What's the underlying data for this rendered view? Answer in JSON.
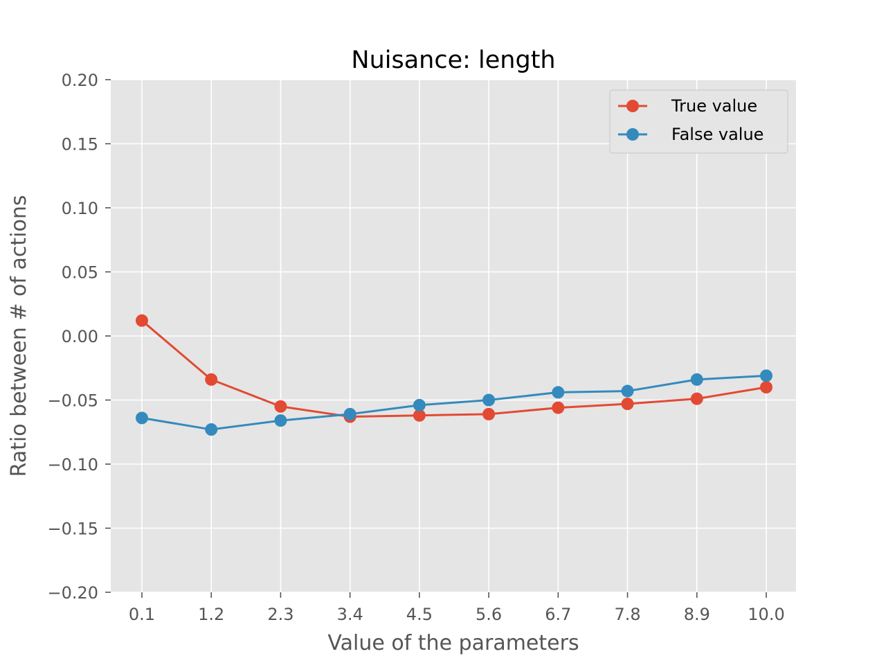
{
  "chart_data": {
    "type": "line",
    "title": "Nuisance: length",
    "xlabel": "Value of the parameters",
    "ylabel": "Ratio between # of actions",
    "x": [
      "0.1",
      "1.2",
      "2.3",
      "3.4",
      "4.5",
      "5.6",
      "6.7",
      "7.8",
      "8.9",
      "10.0"
    ],
    "ylim": [
      -0.2,
      0.2
    ],
    "yticks": [
      0.2,
      0.15,
      0.1,
      0.05,
      0.0,
      -0.05,
      -0.1,
      -0.15,
      -0.2
    ],
    "ytick_labels": [
      "0.20",
      "0.15",
      "0.10",
      "0.05",
      "0.00",
      "−0.05",
      "−0.10",
      "−0.15",
      "−0.20"
    ],
    "grid": true,
    "legend": "top-right",
    "background": "#e5e5e5",
    "series": [
      {
        "name": "True value",
        "color": "#e24a33",
        "values": [
          0.012,
          -0.034,
          -0.055,
          -0.063,
          -0.062,
          -0.061,
          -0.056,
          -0.053,
          -0.049,
          -0.04
        ]
      },
      {
        "name": "False value",
        "color": "#348abd",
        "values": [
          -0.064,
          -0.073,
          -0.066,
          -0.061,
          -0.054,
          -0.05,
          -0.044,
          -0.043,
          -0.034,
          -0.031
        ]
      }
    ]
  }
}
